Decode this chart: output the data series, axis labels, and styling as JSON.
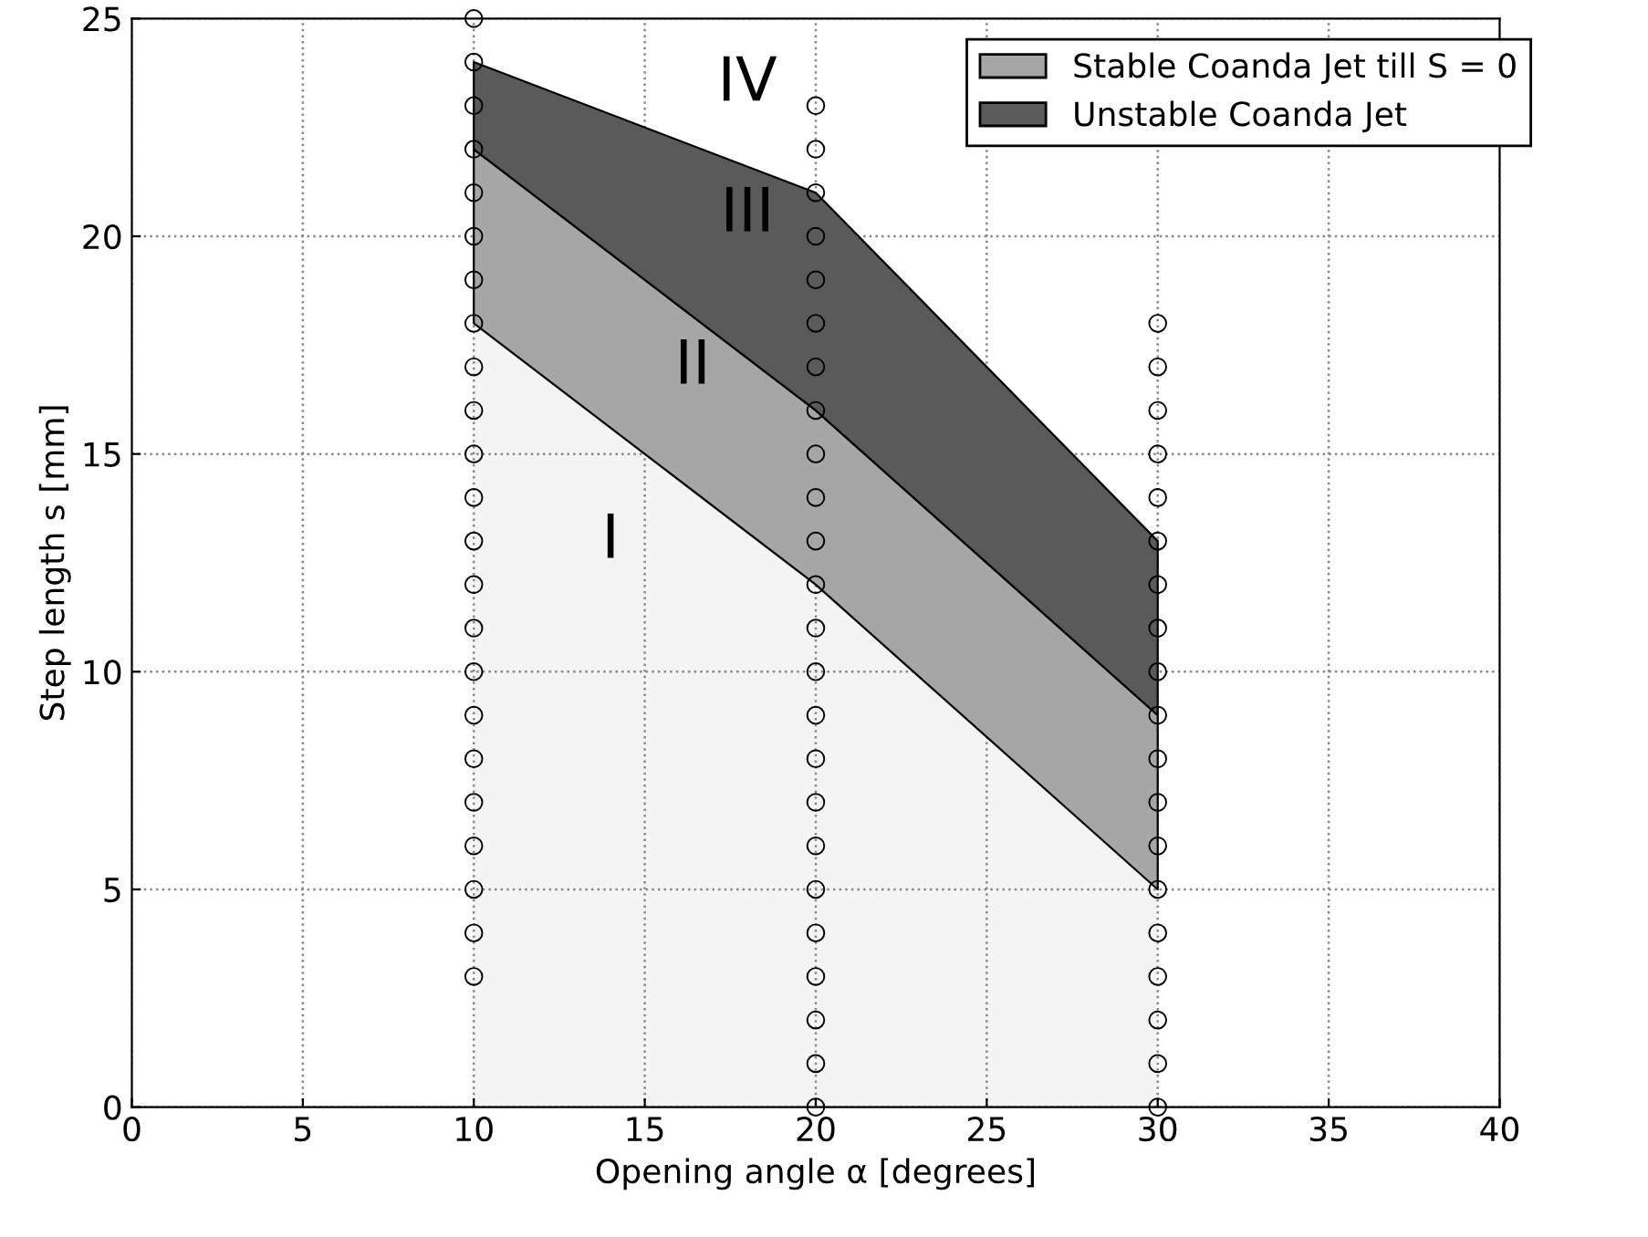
{
  "chart_data": {
    "type": "area",
    "xlabel": "Opening angle α [degrees]",
    "ylabel": "Step length s [mm]",
    "xlim": [
      0,
      40
    ],
    "ylim": [
      0,
      25
    ],
    "xticks": [
      0,
      5,
      10,
      15,
      20,
      25,
      30,
      35,
      40
    ],
    "yticks": [
      0,
      5,
      10,
      15,
      20,
      25
    ],
    "grid": true,
    "legend": "top right",
    "stacked": true,
    "series": [
      {
        "color": "#f4f4f4",
        "x": [
          10,
          20,
          30
        ],
        "values": [
          18,
          12,
          5
        ]
      },
      {
        "name": "Stable Coanda Jet till S = 0",
        "color": "#a6a6a6",
        "x": [
          10,
          20,
          30
        ],
        "values": [
          4,
          4,
          4
        ]
      },
      {
        "name": "Unstable Coanda Jet",
        "color": "#5a5a5a",
        "x": [
          10,
          20,
          30
        ],
        "values": [
          2,
          5,
          4
        ]
      },
      {
        "type": "scatter",
        "color": "#000000",
        "marker": "circle",
        "x": [
          10,
          10,
          10,
          10,
          10,
          10,
          10,
          10,
          10,
          10,
          10,
          10,
          10,
          10,
          10,
          10,
          10,
          10,
          10,
          10,
          10,
          10,
          10
        ],
        "values": [
          3,
          4,
          5,
          6,
          7,
          8,
          9,
          10,
          11,
          12,
          13,
          14,
          15,
          16,
          17,
          18,
          19,
          20,
          21,
          22,
          23,
          24,
          25
        ]
      },
      {
        "type": "scatter",
        "color": "#000000",
        "marker": "circle",
        "x": [
          20,
          20,
          20,
          20,
          20,
          20,
          20,
          20,
          20,
          20,
          20,
          20,
          20,
          20,
          20,
          20,
          20,
          20,
          20,
          20,
          20,
          20,
          20,
          20
        ],
        "values": [
          0,
          1,
          2,
          3,
          4,
          5,
          6,
          7,
          8,
          9,
          10,
          11,
          12,
          13,
          14,
          15,
          16,
          17,
          18,
          19,
          20,
          21,
          22,
          23
        ]
      },
      {
        "type": "scatter",
        "color": "#000000",
        "marker": "circle",
        "x": [
          30,
          30,
          30,
          30,
          30,
          30,
          30,
          30,
          30,
          30,
          30,
          30,
          30,
          30,
          30,
          30,
          30,
          30,
          30
        ],
        "values": [
          0,
          1,
          2,
          3,
          4,
          5,
          6,
          7,
          8,
          9,
          10,
          11,
          12,
          13,
          14,
          15,
          16,
          17,
          18
        ]
      }
    ],
    "annotations": [
      "I",
      "II",
      "III",
      "IV"
    ]
  }
}
